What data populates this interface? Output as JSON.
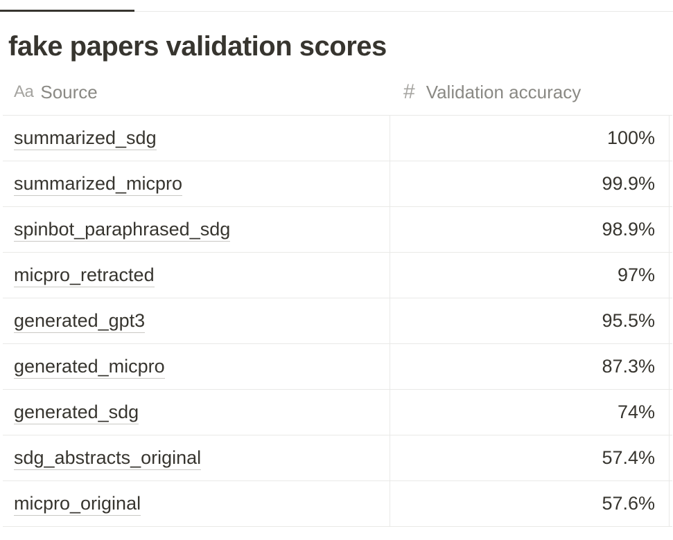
{
  "title": "fake papers validation scores",
  "columns": {
    "source": {
      "icon_text": "Aa",
      "label": "Source",
      "icon": "text-property-icon"
    },
    "accuracy": {
      "icon_text": "#",
      "label": "Validation accuracy",
      "icon": "number-property-icon"
    }
  },
  "rows": [
    {
      "source": "summarized_sdg",
      "accuracy": "100%"
    },
    {
      "source": "summarized_micpro",
      "accuracy": "99.9%"
    },
    {
      "source": "spinbot_paraphrased_sdg",
      "accuracy": "98.9%"
    },
    {
      "source": "micpro_retracted",
      "accuracy": "97%"
    },
    {
      "source": "generated_gpt3",
      "accuracy": "95.5%"
    },
    {
      "source": "generated_micpro",
      "accuracy": "87.3%"
    },
    {
      "source": "generated_sdg",
      "accuracy": "74%"
    },
    {
      "source": "sdg_abstracts_original",
      "accuracy": "57.4%"
    },
    {
      "source": "micpro_original",
      "accuracy": "57.6%"
    }
  ]
}
